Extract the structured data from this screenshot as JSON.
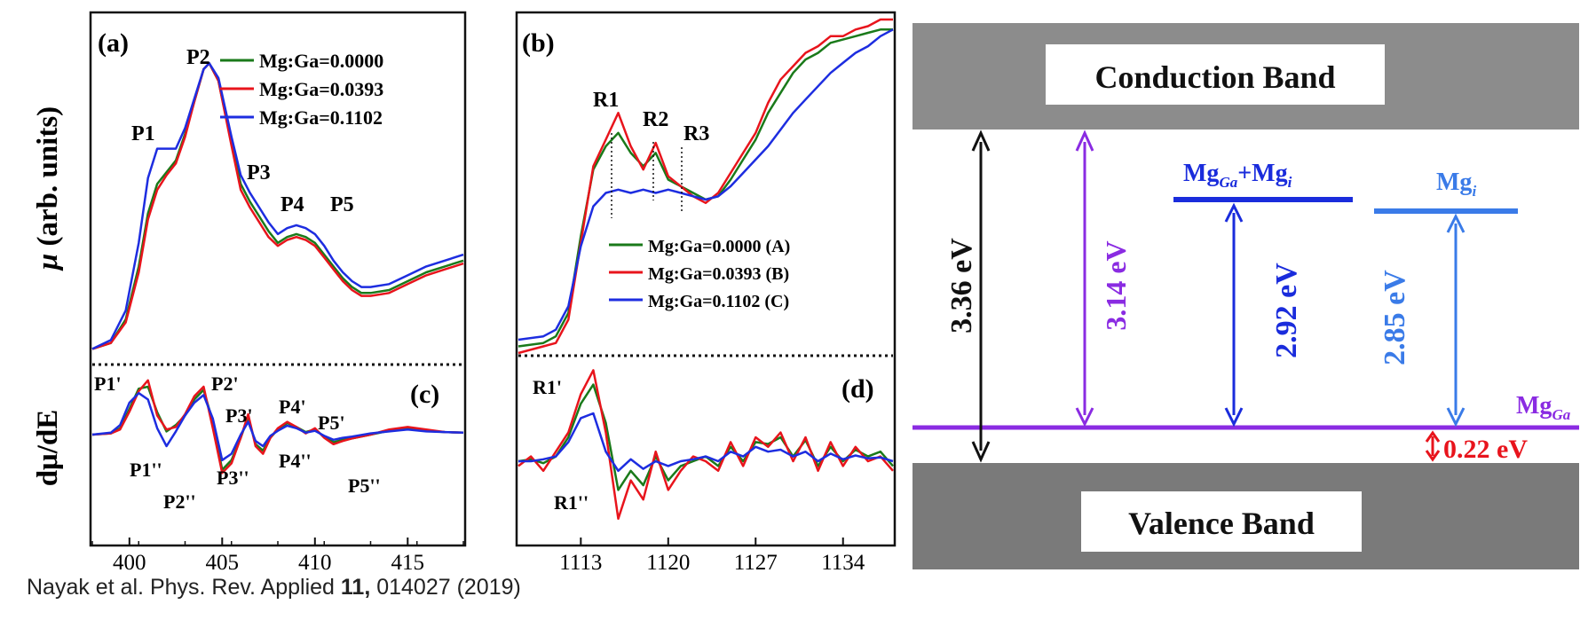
{
  "panels": {
    "a": {
      "label": "(a)",
      "ylabel_mu": "μ",
      "ylabel_rest": " (arb. units)",
      "peaks": [
        "P1",
        "P2",
        "P3",
        "P4",
        "P5"
      ]
    },
    "b": {
      "label": "(b)",
      "peaks": [
        "R1",
        "R2",
        "R3"
      ]
    },
    "c": {
      "label": "(c)",
      "ylabel_d": "dμ/dE",
      "peaks_top": [
        "P1'",
        "P2'",
        "P3'",
        "P4'",
        "P5'"
      ],
      "peaks_bottom": [
        "P1''",
        "P2''",
        "P3''",
        "P4''",
        "P5''"
      ]
    },
    "d": {
      "label": "(d)",
      "peaks_top": [
        "R1'"
      ],
      "peaks_bottom": [
        "R1''"
      ]
    }
  },
  "legend_a": [
    "Mg:Ga=0.0000",
    "Mg:Ga=0.0393",
    "Mg:Ga=0.1102"
  ],
  "legend_b": [
    "Mg:Ga=0.0000  (A)",
    "Mg:Ga=0.0393  (B)",
    "Mg:Ga=0.1102  (C)"
  ],
  "colors": {
    "s0": "#1a7a1a",
    "s1": "#e8141c",
    "s2": "#1d2de0",
    "violet": "#8a2be2",
    "blue": "#1a2cdc",
    "lightblue": "#3a7be8",
    "red": "#e8141c",
    "gray_cb": "#8c8c8c",
    "gray_vb": "#7a7a7a"
  },
  "band": {
    "conduction": "Conduction Band",
    "valence": "Valence Band",
    "gap": "3.36 eV",
    "e314": "3.14 eV",
    "e292": "2.92 eV",
    "e285": "2.85 eV",
    "e022": "0.22 eV",
    "mgga_mgi_main": "Mg",
    "mgga_mgi_sub": "Ga",
    "mgga_mgi_plus": "+Mg",
    "mgga_mgi_sub2": "i",
    "mgi_main": "Mg",
    "mgi_sub": "i",
    "mgga_main": "Mg",
    "mgga_sub": "Ga"
  },
  "citation_pre": "Nayak et al. Phys. Rev. Applied ",
  "citation_vol": "11,",
  "citation_post": " 014027 (2019)",
  "chart_data": [
    {
      "type": "line",
      "panel": "a",
      "xlim": [
        398,
        418
      ],
      "xticks": [
        400,
        405,
        410,
        415
      ],
      "series": [
        {
          "name": "Mg:Ga=0.0000",
          "x": [
            398,
            399,
            399.8,
            400.5,
            401,
            401.5,
            402,
            402.5,
            403,
            403.5,
            404,
            404.3,
            404.8,
            405.5,
            406,
            406.5,
            407,
            407.5,
            408,
            408.5,
            409,
            409.5,
            410,
            410.5,
            411,
            411.5,
            412,
            412.5,
            413,
            414,
            415,
            416,
            417,
            418
          ],
          "y": [
            0.02,
            0.04,
            0.12,
            0.3,
            0.48,
            0.58,
            0.62,
            0.66,
            0.75,
            0.86,
            0.97,
            0.99,
            0.93,
            0.72,
            0.58,
            0.52,
            0.47,
            0.42,
            0.38,
            0.4,
            0.41,
            0.4,
            0.38,
            0.34,
            0.3,
            0.26,
            0.23,
            0.21,
            0.21,
            0.22,
            0.25,
            0.28,
            0.3,
            0.32
          ]
        },
        {
          "name": "Mg:Ga=0.0393",
          "x": [
            398,
            399,
            399.8,
            400.5,
            401,
            401.5,
            402,
            402.5,
            403,
            403.5,
            404,
            404.3,
            404.8,
            405.5,
            406,
            406.5,
            407,
            407.5,
            408,
            408.5,
            409,
            409.5,
            410,
            410.5,
            411,
            411.5,
            412,
            412.5,
            413,
            414,
            415,
            416,
            417,
            418
          ],
          "y": [
            0.02,
            0.04,
            0.11,
            0.28,
            0.46,
            0.56,
            0.61,
            0.65,
            0.74,
            0.86,
            0.97,
            0.99,
            0.93,
            0.71,
            0.56,
            0.5,
            0.45,
            0.4,
            0.37,
            0.39,
            0.4,
            0.39,
            0.37,
            0.33,
            0.29,
            0.25,
            0.22,
            0.2,
            0.2,
            0.21,
            0.24,
            0.27,
            0.29,
            0.31
          ]
        },
        {
          "name": "Mg:Ga=0.1102",
          "x": [
            398,
            399,
            399.8,
            400.5,
            401,
            401.5,
            402,
            402.5,
            403,
            403.5,
            404,
            404.3,
            404.8,
            405.5,
            406,
            406.5,
            407,
            407.5,
            408,
            408.5,
            409,
            409.5,
            410,
            410.5,
            411,
            411.5,
            412,
            412.5,
            413,
            414,
            415,
            416,
            417,
            418
          ],
          "y": [
            0.02,
            0.05,
            0.15,
            0.38,
            0.6,
            0.7,
            0.7,
            0.7,
            0.77,
            0.87,
            0.97,
            0.99,
            0.94,
            0.74,
            0.61,
            0.55,
            0.5,
            0.45,
            0.41,
            0.43,
            0.44,
            0.43,
            0.41,
            0.37,
            0.32,
            0.28,
            0.25,
            0.23,
            0.23,
            0.24,
            0.27,
            0.3,
            0.32,
            0.34
          ]
        }
      ]
    },
    {
      "type": "line",
      "panel": "b",
      "xlim": [
        1108,
        1138
      ],
      "series": [
        {
          "name": "Mg:Ga=0.0000  (A)",
          "x": [
            1108,
            1110,
            1111,
            1112,
            1113,
            1114,
            1115,
            1116,
            1117,
            1118,
            1119,
            1120,
            1121,
            1122,
            1123,
            1124,
            1125,
            1126,
            1127,
            1128,
            1129,
            1130,
            1131,
            1132,
            1133,
            1134,
            1135,
            1136,
            1137,
            1138
          ],
          "y": [
            0.02,
            0.03,
            0.05,
            0.12,
            0.35,
            0.55,
            0.62,
            0.66,
            0.6,
            0.56,
            0.6,
            0.52,
            0.5,
            0.48,
            0.46,
            0.47,
            0.52,
            0.58,
            0.64,
            0.72,
            0.78,
            0.84,
            0.88,
            0.9,
            0.93,
            0.94,
            0.95,
            0.96,
            0.97,
            0.97
          ]
        },
        {
          "name": "Mg:Ga=0.0393  (B)",
          "x": [
            1108,
            1110,
            1111,
            1112,
            1113,
            1114,
            1115,
            1116,
            1117,
            1118,
            1119,
            1120,
            1121,
            1122,
            1123,
            1124,
            1125,
            1126,
            1127,
            1128,
            1129,
            1130,
            1131,
            1132,
            1133,
            1134,
            1135,
            1136,
            1137,
            1138
          ],
          "y": [
            0.0,
            0.02,
            0.03,
            0.1,
            0.33,
            0.56,
            0.64,
            0.72,
            0.62,
            0.55,
            0.63,
            0.53,
            0.5,
            0.47,
            0.45,
            0.48,
            0.54,
            0.6,
            0.66,
            0.75,
            0.82,
            0.86,
            0.9,
            0.92,
            0.95,
            0.95,
            0.97,
            0.98,
            1.0,
            1.0
          ]
        },
        {
          "name": "Mg:Ga=0.1102  (C)",
          "x": [
            1108,
            1110,
            1111,
            1112,
            1113,
            1114,
            1115,
            1116,
            1117,
            1118,
            1119,
            1120,
            1121,
            1122,
            1123,
            1124,
            1125,
            1126,
            1127,
            1128,
            1129,
            1130,
            1131,
            1132,
            1133,
            1134,
            1135,
            1136,
            1137,
            1138
          ],
          "y": [
            0.04,
            0.05,
            0.07,
            0.14,
            0.32,
            0.44,
            0.48,
            0.49,
            0.48,
            0.49,
            0.48,
            0.49,
            0.48,
            0.47,
            0.46,
            0.47,
            0.5,
            0.54,
            0.58,
            0.62,
            0.67,
            0.72,
            0.76,
            0.8,
            0.84,
            0.87,
            0.9,
            0.92,
            0.95,
            0.97
          ]
        }
      ]
    },
    {
      "type": "line",
      "panel": "c",
      "xlabel_ticks": [
        400,
        405,
        410,
        415
      ],
      "xlim": [
        398,
        418
      ],
      "series": [
        {
          "name": "Mg:Ga=0.0000",
          "x": [
            398,
            399,
            399.5,
            400,
            400.5,
            401,
            401.5,
            402,
            402.5,
            403,
            403.5,
            404,
            404.5,
            405,
            405.5,
            406,
            406.4,
            406.8,
            407.2,
            407.6,
            408,
            408.5,
            409,
            409.5,
            410,
            410.5,
            411,
            411.5,
            412,
            413,
            414,
            415,
            416,
            417,
            418
          ],
          "y": [
            0.0,
            0.02,
            0.1,
            0.4,
            0.72,
            0.75,
            0.35,
            0.05,
            0.15,
            0.3,
            0.55,
            0.7,
            0.2,
            -0.55,
            -0.4,
            -0.05,
            0.28,
            -0.15,
            -0.25,
            -0.05,
            0.08,
            0.18,
            0.12,
            0.04,
            0.08,
            -0.03,
            -0.12,
            -0.08,
            -0.06,
            0.0,
            0.06,
            0.1,
            0.06,
            0.04,
            0.03
          ]
        },
        {
          "name": "Mg:Ga=0.0393",
          "x": [
            398,
            399,
            399.5,
            400,
            400.5,
            401,
            401.5,
            402,
            402.5,
            403,
            403.5,
            404,
            404.5,
            405,
            405.5,
            406,
            406.4,
            406.8,
            407.2,
            407.6,
            408,
            408.5,
            409,
            409.5,
            410,
            410.5,
            411,
            411.5,
            412,
            413,
            414,
            415,
            416,
            417,
            418
          ],
          "y": [
            0.0,
            0.02,
            0.08,
            0.36,
            0.68,
            0.85,
            0.3,
            0.08,
            0.12,
            0.32,
            0.6,
            0.75,
            0.1,
            -0.6,
            -0.45,
            -0.05,
            0.32,
            -0.18,
            -0.3,
            -0.05,
            0.1,
            0.2,
            0.12,
            0.02,
            0.1,
            -0.05,
            -0.15,
            -0.1,
            -0.06,
            0.0,
            0.08,
            0.12,
            0.08,
            0.04,
            0.03
          ]
        },
        {
          "name": "Mg:Ga=0.1102",
          "x": [
            398,
            399,
            399.5,
            400,
            400.5,
            401,
            401.5,
            402,
            402.5,
            403,
            403.5,
            404,
            404.5,
            405,
            405.5,
            406,
            406.4,
            406.8,
            407.2,
            407.6,
            408,
            408.5,
            409,
            409.5,
            410,
            410.5,
            411,
            411.5,
            412,
            413,
            414,
            415,
            416,
            417,
            418
          ],
          "y": [
            0.0,
            0.03,
            0.15,
            0.5,
            0.65,
            0.55,
            0.1,
            -0.18,
            0.05,
            0.3,
            0.5,
            0.62,
            0.25,
            -0.4,
            -0.3,
            0.0,
            0.2,
            -0.1,
            -0.18,
            -0.02,
            0.06,
            0.14,
            0.1,
            0.03,
            0.06,
            -0.02,
            -0.08,
            -0.05,
            -0.03,
            0.02,
            0.05,
            0.08,
            0.05,
            0.04,
            0.03
          ]
        }
      ]
    },
    {
      "type": "line",
      "panel": "d",
      "xlim": [
        1108,
        1138
      ],
      "xticks": [
        1113,
        1120,
        1127,
        1134
      ],
      "series": [
        {
          "name": "Mg:Ga=0.0000  (A)",
          "x": [
            1108,
            1109,
            1110,
            1111,
            1112,
            1113,
            1114,
            1115,
            1116,
            1117,
            1118,
            1119,
            1120,
            1121,
            1122,
            1123,
            1124,
            1125,
            1126,
            1127,
            1128,
            1129,
            1130,
            1131,
            1132,
            1133,
            1134,
            1135,
            1136,
            1137,
            1138
          ],
          "y": [
            0.0,
            0.02,
            -0.02,
            0.05,
            0.25,
            0.6,
            0.8,
            0.4,
            -0.3,
            -0.1,
            -0.25,
            0.05,
            -0.2,
            -0.05,
            0.0,
            0.05,
            -0.05,
            0.15,
            0.0,
            0.2,
            0.18,
            0.25,
            0.05,
            0.22,
            -0.05,
            0.15,
            0.0,
            0.12,
            0.05,
            0.1,
            -0.05
          ]
        },
        {
          "name": "Mg:Ga=0.0393  (B)",
          "x": [
            1108,
            1109,
            1110,
            1111,
            1112,
            1113,
            1114,
            1115,
            1116,
            1117,
            1118,
            1119,
            1120,
            1121,
            1122,
            1123,
            1124,
            1125,
            1126,
            1127,
            1128,
            1129,
            1130,
            1131,
            1132,
            1133,
            1134,
            1135,
            1136,
            1137,
            1138
          ],
          "y": [
            -0.05,
            0.05,
            -0.1,
            0.1,
            0.3,
            0.7,
            0.95,
            0.3,
            -0.6,
            -0.2,
            -0.4,
            0.1,
            -0.3,
            -0.1,
            0.05,
            0.0,
            -0.1,
            0.2,
            -0.05,
            0.25,
            0.15,
            0.3,
            0.0,
            0.25,
            -0.1,
            0.2,
            -0.05,
            0.15,
            0.0,
            0.05,
            -0.1
          ]
        },
        {
          "name": "Mg:Ga=0.1102  (C)",
          "x": [
            1108,
            1109,
            1110,
            1111,
            1112,
            1113,
            1114,
            1115,
            1116,
            1117,
            1118,
            1119,
            1120,
            1121,
            1122,
            1123,
            1124,
            1125,
            1126,
            1127,
            1128,
            1129,
            1130,
            1131,
            1132,
            1133,
            1134,
            1135,
            1136,
            1137,
            1138
          ],
          "y": [
            0.0,
            0.0,
            0.02,
            0.05,
            0.2,
            0.45,
            0.5,
            0.1,
            -0.1,
            0.02,
            -0.08,
            0.0,
            -0.05,
            0.0,
            0.02,
            0.05,
            0.0,
            0.1,
            0.05,
            0.15,
            0.1,
            0.12,
            0.05,
            0.1,
            0.0,
            0.08,
            0.02,
            0.06,
            0.03,
            0.04,
            0.0
          ]
        }
      ]
    }
  ]
}
